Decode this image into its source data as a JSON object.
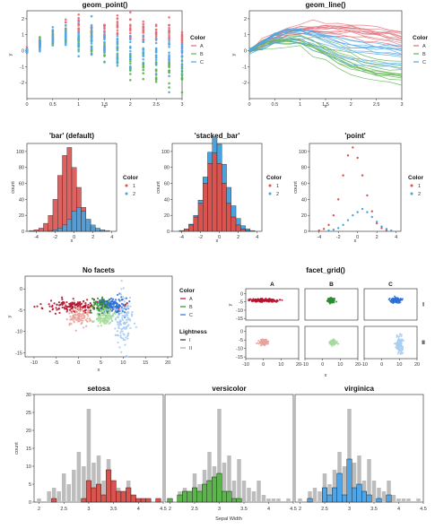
{
  "figure": {
    "theme_colors": {
      "A": "#e06c75",
      "B": "#5db34e",
      "C": "#4ea6e8",
      "series1": "#d9534f",
      "series2": "#4aa3df",
      "grey": "#bdbdbd"
    },
    "rows": 4
  },
  "chart_data": [
    {
      "id": "geom_point",
      "type": "scatter",
      "title": "geom_point()",
      "xlabel": "x",
      "ylabel": "y",
      "xlim": [
        0,
        3
      ],
      "ylim": [
        -3,
        2.5
      ],
      "xticks": [
        "0",
        "0.5",
        "1",
        "1.5",
        "2",
        "2.5",
        "3"
      ],
      "yticks": [
        "-2",
        "-1",
        "0",
        "1",
        "2"
      ],
      "legend": {
        "title": "Color",
        "entries": [
          "A",
          "B",
          "C"
        ],
        "position": "right"
      },
      "series": [
        {
          "name": "A",
          "color": "#e06c75",
          "x": [
            0,
            0.25,
            0.5,
            0.75,
            1,
            1.25,
            1.5,
            1.75,
            2,
            2.25,
            2.5,
            2.75,
            3
          ],
          "y_center": [
            0,
            0.5,
            0.9,
            1.2,
            1.3,
            1.35,
            1.35,
            1.35,
            1.3,
            1.2,
            1.1,
            1.0,
            0.8
          ],
          "spread": [
            0.1,
            0.35,
            0.5,
            0.6,
            0.6,
            0.6,
            0.65,
            0.7,
            0.7,
            0.75,
            0.75,
            0.8,
            0.8
          ]
        },
        {
          "name": "B",
          "color": "#5db34e",
          "x": [
            0,
            0.25,
            0.5,
            0.75,
            1,
            1.25,
            1.5,
            1.75,
            2,
            2.25,
            2.5,
            2.75,
            3
          ],
          "y_center": [
            0,
            0.4,
            0.7,
            0.8,
            0.7,
            0.4,
            0.1,
            -0.3,
            -0.6,
            -0.9,
            -1.1,
            -1.2,
            -1.3
          ],
          "spread": [
            0.1,
            0.35,
            0.5,
            0.6,
            0.7,
            0.8,
            0.9,
            1.0,
            1.0,
            1.0,
            1.0,
            1.0,
            1.0
          ]
        },
        {
          "name": "C",
          "color": "#4ea6e8",
          "x": [
            0,
            0.25,
            0.5,
            0.75,
            1,
            1.25,
            1.5,
            1.75,
            2,
            2.25,
            2.5,
            2.75,
            3
          ],
          "y_center": [
            0,
            0.4,
            0.8,
            1.0,
            1.0,
            0.8,
            0.5,
            0.2,
            0,
            -0.1,
            -0.2,
            -0.25,
            -0.3
          ],
          "spread": [
            0.1,
            0.35,
            0.5,
            0.6,
            0.7,
            0.8,
            0.9,
            1.0,
            1.0,
            1.0,
            1.0,
            1.0,
            1.0
          ]
        }
      ]
    },
    {
      "id": "geom_line",
      "type": "line",
      "title": "geom_line()",
      "xlabel": "x",
      "ylabel": "y",
      "xlim": [
        0,
        3
      ],
      "ylim": [
        -3,
        2.5
      ],
      "xticks": [
        "0",
        "0.5",
        "1",
        "1.5",
        "2",
        "2.5",
        "3"
      ],
      "yticks": [
        "-2",
        "-1",
        "0",
        "1",
        "2"
      ],
      "legend": {
        "title": "Color",
        "entries": [
          "A",
          "B",
          "C"
        ],
        "position": "right"
      },
      "lines_per_series": 12
    },
    {
      "id": "bar_default",
      "type": "bar",
      "title": "'bar' (default)",
      "xlabel": "x",
      "ylabel": "count",
      "xlim": [
        -5,
        4.5
      ],
      "ylim": [
        0,
        110
      ],
      "xticks": [
        "-4",
        "-2",
        "0",
        "2",
        "4"
      ],
      "yticks": [
        "0",
        "20",
        "40",
        "60",
        "80",
        "100"
      ],
      "legend": {
        "title": "Color",
        "entries": [
          "1",
          "2"
        ],
        "position": "right"
      },
      "bin_centers": [
        -4.5,
        -4,
        -3.5,
        -3,
        -2.5,
        -2,
        -1.5,
        -1,
        -0.5,
        0,
        0.5,
        1,
        1.5,
        2,
        2.5,
        3,
        3.5,
        4
      ],
      "series": [
        {
          "name": "1",
          "values": [
            1,
            2,
            4,
            10,
            20,
            40,
            70,
            95,
            105,
            80,
            55,
            30,
            15,
            6,
            2,
            1,
            0,
            0
          ]
        },
        {
          "name": "2",
          "values": [
            0,
            0,
            0,
            0,
            1,
            2,
            4,
            8,
            15,
            25,
            30,
            25,
            15,
            8,
            4,
            2,
            1,
            0
          ]
        }
      ]
    },
    {
      "id": "stacked_bar",
      "type": "bar",
      "title": "'stacked_bar'",
      "xlabel": "x",
      "ylabel": "count",
      "xlim": [
        -5,
        4.5
      ],
      "ylim": [
        0,
        110
      ],
      "xticks": [
        "-4",
        "-2",
        "0",
        "2",
        "4"
      ],
      "yticks": [
        "0",
        "20",
        "40",
        "60",
        "80",
        "100"
      ],
      "legend": {
        "title": "Color",
        "entries": [
          "1",
          "2"
        ],
        "position": "right"
      },
      "bin_centers": [
        -4,
        -3.5,
        -3,
        -2.5,
        -2,
        -1.5,
        -1,
        -0.5,
        0,
        0.5,
        1,
        1.5,
        2,
        2.5,
        3,
        3.5
      ],
      "series": [
        {
          "name": "1",
          "values": [
            1,
            3,
            8,
            18,
            35,
            60,
            85,
            98,
            85,
            60,
            35,
            18,
            8,
            3,
            1,
            0
          ]
        },
        {
          "name": "2",
          "values": [
            0,
            0,
            1,
            2,
            4,
            8,
            14,
            20,
            24,
            24,
            20,
            14,
            8,
            4,
            2,
            1
          ]
        }
      ]
    },
    {
      "id": "point_hist",
      "type": "scatter",
      "title": "'point'",
      "xlabel": "x",
      "ylabel": "count",
      "xlim": [
        -5,
        4.5
      ],
      "ylim": [
        0,
        110
      ],
      "xticks": [
        "-4",
        "-2",
        "0",
        "2",
        "4"
      ],
      "yticks": [
        "0",
        "20",
        "40",
        "60",
        "80",
        "100"
      ],
      "legend": {
        "title": "Color",
        "entries": [
          "1",
          "2"
        ],
        "position": "right"
      },
      "series": [
        {
          "name": "1",
          "x": [
            -4,
            -3.5,
            -3,
            -2.5,
            -2,
            -1.5,
            -1,
            -0.5,
            0,
            0.5,
            1,
            1.5,
            2,
            2.5,
            3
          ],
          "y": [
            1,
            3,
            8,
            20,
            40,
            70,
            95,
            105,
            92,
            70,
            45,
            25,
            10,
            4,
            1
          ]
        },
        {
          "name": "2",
          "x": [
            -3,
            -2.5,
            -2,
            -1.5,
            -1,
            -0.5,
            0,
            0.5,
            1,
            1.5,
            2,
            2.5,
            3,
            3.5
          ],
          "y": [
            1,
            2,
            4,
            8,
            14,
            20,
            24,
            28,
            24,
            18,
            12,
            6,
            3,
            1
          ]
        }
      ]
    },
    {
      "id": "no_facets",
      "type": "scatter",
      "title": "No facets",
      "xlabel": "x",
      "ylabel": "y",
      "xlim": [
        -12,
        21
      ],
      "ylim": [
        -16,
        3
      ],
      "xticks": [
        "-10",
        "-5",
        "0",
        "5",
        "10",
        "15",
        "20"
      ],
      "yticks": [
        "0",
        "-5",
        "-10",
        "-15"
      ],
      "legend": [
        {
          "title": "Color",
          "entries": [
            "A",
            "B",
            "C"
          ]
        },
        {
          "title": "Lightness",
          "entries": [
            "I",
            "II"
          ]
        }
      ],
      "clusters": [
        {
          "group": "A",
          "light": "I",
          "cx": 0,
          "cy": -4,
          "sx": 4,
          "sy": 0.7,
          "n": 150
        },
        {
          "group": "B",
          "light": "I",
          "cx": 5,
          "cy": -4,
          "sx": 1,
          "sy": 1,
          "n": 100
        },
        {
          "group": "C",
          "light": "I",
          "cx": 8,
          "cy": -4,
          "sx": 1.5,
          "sy": 1,
          "n": 120
        },
        {
          "group": "A",
          "light": "II",
          "cx": 0,
          "cy": -6.5,
          "sx": 1.5,
          "sy": 1.2,
          "n": 100
        },
        {
          "group": "B",
          "light": "II",
          "cx": 6,
          "cy": -6.5,
          "sx": 1,
          "sy": 1,
          "n": 100
        },
        {
          "group": "C",
          "light": "II",
          "cx": 10,
          "cy": -8,
          "sx": 1,
          "sy": 3.5,
          "n": 120
        }
      ]
    },
    {
      "id": "facet_grid",
      "type": "scatter",
      "title": "facet_grid()",
      "xlabel": "x",
      "ylabel": "y",
      "xlim": [
        -10,
        20
      ],
      "ylim": [
        -16,
        3
      ],
      "xticks": [
        "-10",
        "0",
        "10",
        "20"
      ],
      "yticks": [
        "0",
        "-5",
        "-10",
        "-15"
      ],
      "col_facets": [
        "A",
        "B",
        "C"
      ],
      "row_facets": [
        "I",
        "II"
      ]
    },
    {
      "id": "iris_facets",
      "type": "bar",
      "xlabel": "Sepal Width",
      "ylabel": "count",
      "xlim": [
        1.9,
        4.5
      ],
      "ylim": [
        0,
        30
      ],
      "xticks": [
        "2",
        "2.5",
        "3",
        "3.5",
        "4",
        "4.5"
      ],
      "yticks": [
        "0",
        "5",
        "10",
        "15",
        "20",
        "25",
        "30"
      ],
      "bin_centers": [
        2.0,
        2.1,
        2.2,
        2.3,
        2.4,
        2.5,
        2.6,
        2.7,
        2.8,
        2.9,
        3.0,
        3.1,
        3.2,
        3.3,
        3.4,
        3.5,
        3.6,
        3.7,
        3.8,
        3.9,
        4.0,
        4.1,
        4.2,
        4.3,
        4.4
      ],
      "all_counts": [
        1,
        0,
        3,
        4,
        3,
        8,
        5,
        9,
        14,
        10,
        26,
        11,
        13,
        6,
        12,
        6,
        4,
        3,
        6,
        2,
        1,
        1,
        1,
        0,
        1
      ],
      "panels": [
        {
          "title": "setosa",
          "color": "#d9534f",
          "values": [
            0,
            0,
            0,
            1,
            0,
            0,
            0,
            0,
            0,
            1,
            6,
            4,
            5,
            2,
            9,
            6,
            3,
            3,
            4,
            2,
            1,
            1,
            1,
            0,
            1
          ]
        },
        {
          "title": "versicolor",
          "color": "#5db34e",
          "values": [
            1,
            0,
            2,
            3,
            3,
            4,
            3,
            5,
            6,
            7,
            8,
            3,
            3,
            1,
            1,
            0,
            0,
            0,
            0,
            0,
            0,
            0,
            0,
            0,
            0
          ]
        },
        {
          "title": "virginica",
          "color": "#4ea6e8",
          "values": [
            0,
            0,
            1,
            0,
            0,
            4,
            2,
            4,
            8,
            2,
            12,
            4,
            5,
            3,
            2,
            0,
            1,
            0,
            2,
            0,
            0,
            0,
            0,
            0,
            0
          ]
        }
      ]
    }
  ]
}
